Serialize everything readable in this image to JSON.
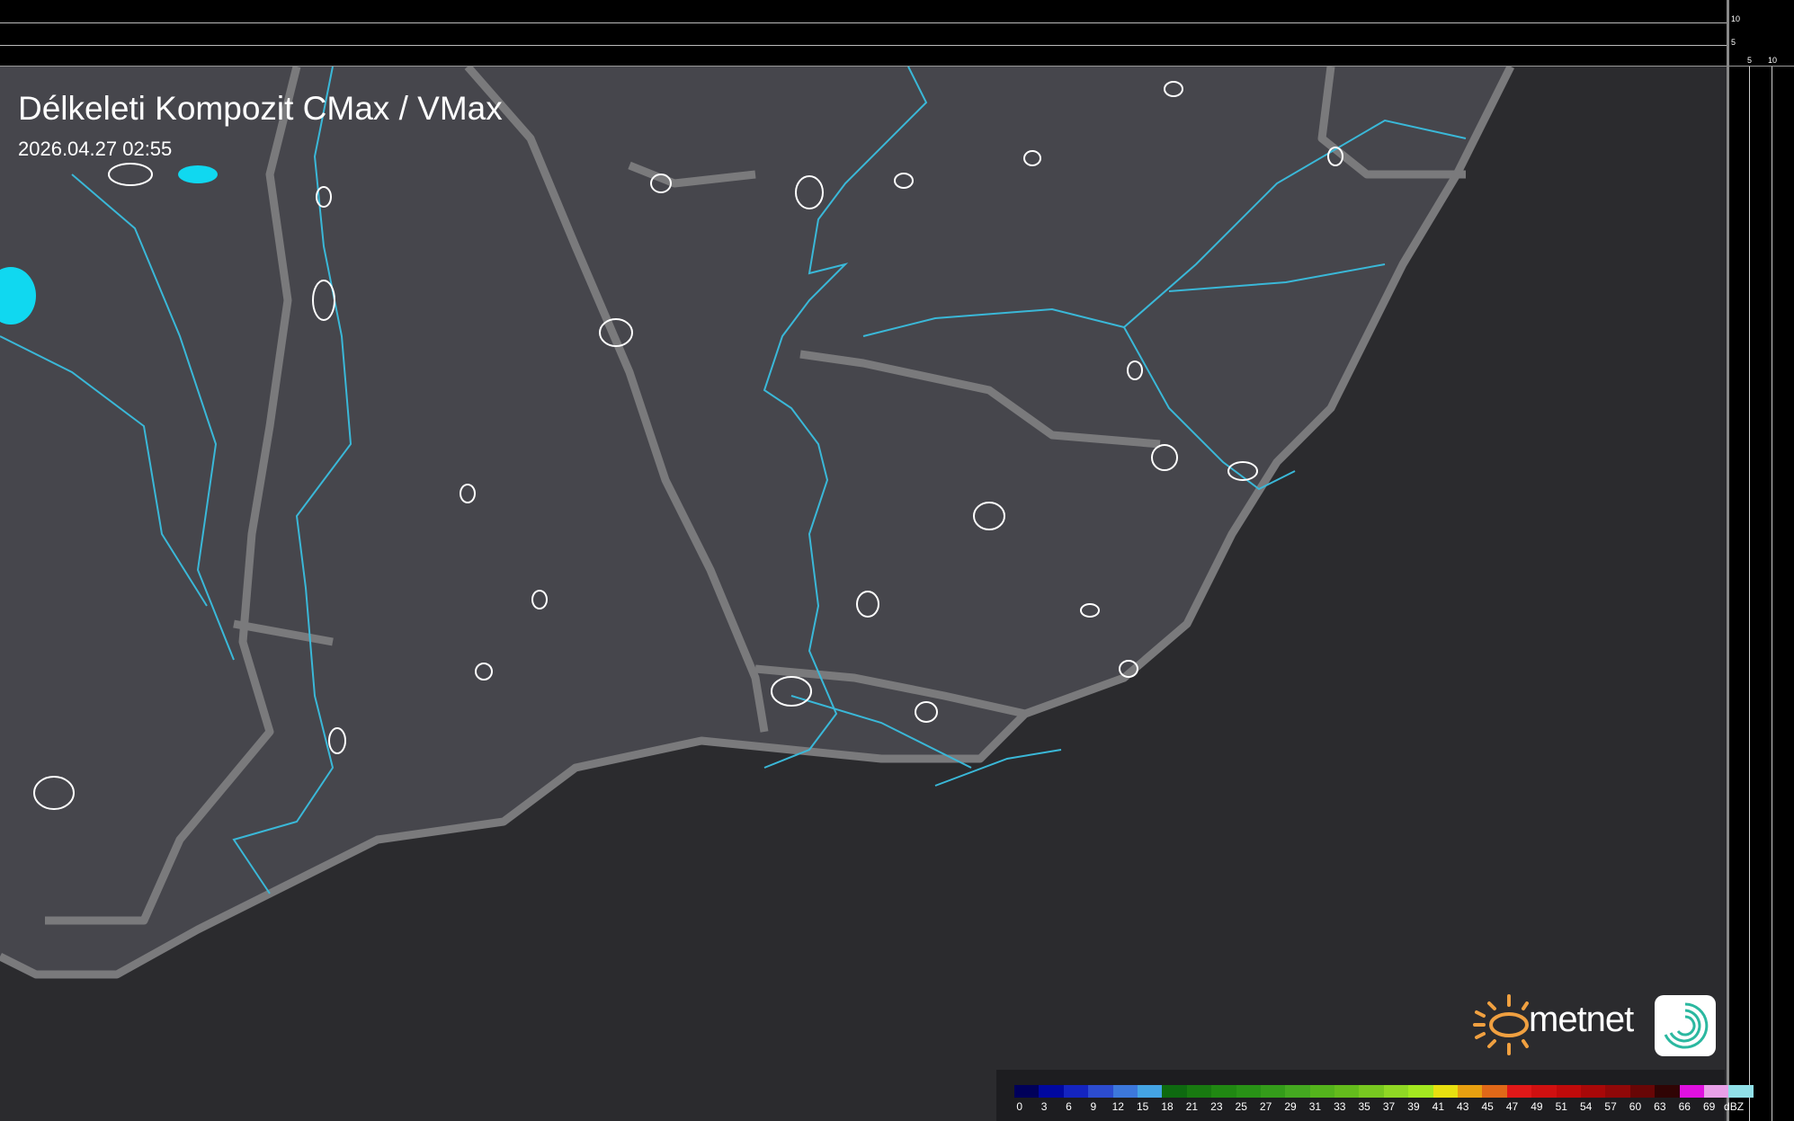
{
  "title": "Délkeleti Kompozit CMax / VMax",
  "timestamp": "2026.04.27 02:55",
  "scale_ticks": {
    "vertical": [
      "10",
      "5"
    ],
    "horizontal": [
      "5",
      "10"
    ]
  },
  "logo": {
    "text": "metnet",
    "sun_color": "#f0a040"
  },
  "legend": {
    "unit": "dBZ",
    "labels": [
      "0",
      "3",
      "6",
      "9",
      "12",
      "15",
      "18",
      "21",
      "23",
      "25",
      "27",
      "29",
      "31",
      "33",
      "35",
      "37",
      "39",
      "41",
      "43",
      "45",
      "47",
      "49",
      "51",
      "54",
      "57",
      "60",
      "63",
      "66",
      "69"
    ],
    "colors": [
      "#00005a",
      "#0008a0",
      "#1424c0",
      "#2c4cd0",
      "#3c78dc",
      "#44a4e4",
      "#0e6a10",
      "#187a10",
      "#208812",
      "#289216",
      "#349c1a",
      "#44a820",
      "#54b41c",
      "#64bc1c",
      "#78c820",
      "#90d824",
      "#a4e820",
      "#e8e010",
      "#e8a010",
      "#e06818",
      "#e01818",
      "#d01010",
      "#c00a0a",
      "#a80808",
      "#900808",
      "#680606",
      "#300404",
      "#e010e0",
      "#e8a0e8"
    ],
    "last_color": "#90e0e8"
  },
  "colors": {
    "river": "#3ab8d8",
    "border": "#7a7a7c",
    "land": "#46464c",
    "outline": "#ffffff",
    "echo": "#10d8f0"
  }
}
